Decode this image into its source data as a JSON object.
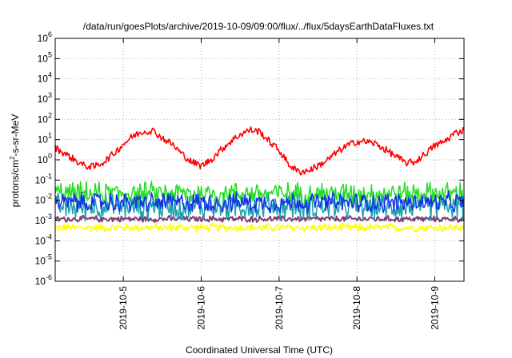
{
  "chart_data": {
    "type": "line",
    "title": "/data/run/goesPlots/archive/2019-10-09/09:00/flux/../flux/5daysEarthDataFluxes.txt",
    "xlabel": "Coordinated Universal Time (UTC)",
    "ylabel_parts": {
      "base": "protons/cm",
      "sup": "2",
      "rest": "-s-sr-MeV"
    },
    "x_scale": "time",
    "xlim": [
      "2019-10-04T03:00",
      "2019-10-09T09:00"
    ],
    "x_ticks": [
      {
        "value": "2019-10-05T00:00",
        "label": "2019-10-5"
      },
      {
        "value": "2019-10-06T00:00",
        "label": "2019-10-6"
      },
      {
        "value": "2019-10-07T00:00",
        "label": "2019-10-7"
      },
      {
        "value": "2019-10-08T00:00",
        "label": "2019-10-8"
      },
      {
        "value": "2019-10-09T00:00",
        "label": "2019-10-9"
      }
    ],
    "y_scale": "log",
    "ylim": [
      1e-06,
      1000000
    ],
    "y_ticks": [
      {
        "value": 1e-06,
        "base": "10",
        "exp": "-6"
      },
      {
        "value": 1e-05,
        "base": "10",
        "exp": "-5"
      },
      {
        "value": 0.0001,
        "base": "10",
        "exp": "-4"
      },
      {
        "value": 0.001,
        "base": "10",
        "exp": "-3"
      },
      {
        "value": 0.01,
        "base": "10",
        "exp": "-2"
      },
      {
        "value": 0.1,
        "base": "10",
        "exp": "-1"
      },
      {
        "value": 1,
        "base": "10",
        "exp": "0"
      },
      {
        "value": 10,
        "base": "10",
        "exp": "1"
      },
      {
        "value": 100,
        "base": "10",
        "exp": "2"
      },
      {
        "value": 1000,
        "base": "10",
        "exp": "3"
      },
      {
        "value": 10000,
        "base": "10",
        "exp": "4"
      },
      {
        "value": 100000,
        "base": "10",
        "exp": "5"
      },
      {
        "value": 1000000,
        "base": "10",
        "exp": "6"
      }
    ],
    "grid": true,
    "legend": "none",
    "series": [
      {
        "color": "#ff0000",
        "points": [
          [
            "2019-10-04T03:00",
            4.0
          ],
          [
            "2019-10-04T06:00",
            2.0
          ],
          [
            "2019-10-04T09:00",
            1.0
          ],
          [
            "2019-10-04T12:00",
            0.5
          ],
          [
            "2019-10-04T15:00",
            0.45
          ],
          [
            "2019-10-04T18:00",
            0.8
          ],
          [
            "2019-10-04T21:00",
            2.0
          ],
          [
            "2019-10-05T00:00",
            6.0
          ],
          [
            "2019-10-05T03:00",
            15.0
          ],
          [
            "2019-10-05T06:00",
            25.0
          ],
          [
            "2019-10-05T09:00",
            28.0
          ],
          [
            "2019-10-05T12:00",
            12.0
          ],
          [
            "2019-10-05T15:00",
            6.0
          ],
          [
            "2019-10-05T18:00",
            2.0
          ],
          [
            "2019-10-05T21:00",
            0.8
          ],
          [
            "2019-10-06T00:00",
            0.5
          ],
          [
            "2019-10-06T03:00",
            1.0
          ],
          [
            "2019-10-06T06:00",
            3.0
          ],
          [
            "2019-10-06T09:00",
            8.0
          ],
          [
            "2019-10-06T12:00",
            18.0
          ],
          [
            "2019-10-06T15:00",
            30.0
          ],
          [
            "2019-10-06T18:00",
            25.0
          ],
          [
            "2019-10-06T21:00",
            8.0
          ],
          [
            "2019-10-07T00:00",
            3.0
          ],
          [
            "2019-10-07T03:00",
            0.6
          ],
          [
            "2019-10-07T06:00",
            0.25
          ],
          [
            "2019-10-07T09:00",
            0.3
          ],
          [
            "2019-10-07T12:00",
            0.5
          ],
          [
            "2019-10-07T15:00",
            1.0
          ],
          [
            "2019-10-07T18:00",
            2.5
          ],
          [
            "2019-10-07T21:00",
            5.0
          ],
          [
            "2019-10-08T00:00",
            8.0
          ],
          [
            "2019-10-08T03:00",
            8.0
          ],
          [
            "2019-10-08T06:00",
            6.0
          ],
          [
            "2019-10-08T09:00",
            3.0
          ],
          [
            "2019-10-08T12:00",
            1.5
          ],
          [
            "2019-10-08T15:00",
            0.7
          ],
          [
            "2019-10-08T18:00",
            0.8
          ],
          [
            "2019-10-08T21:00",
            2.0
          ],
          [
            "2019-10-09T00:00",
            5.0
          ],
          [
            "2019-10-09T03:00",
            8.0
          ],
          [
            "2019-10-09T06:00",
            20.0
          ],
          [
            "2019-10-09T09:00",
            30.0
          ]
        ]
      },
      {
        "color": "#22dd22",
        "noise_band": [
          0.005,
          0.1
        ]
      },
      {
        "color": "#1aa0b0",
        "noise_band": [
          0.0008,
          0.03
        ]
      },
      {
        "color": "#1030e8",
        "noise_band": [
          0.002,
          0.03
        ]
      },
      {
        "color": "#7b3f72",
        "noise_band": [
          0.0008,
          0.0018
        ]
      },
      {
        "color": "#ffff00",
        "noise_band": [
          0.00025,
          0.0008
        ]
      }
    ]
  }
}
